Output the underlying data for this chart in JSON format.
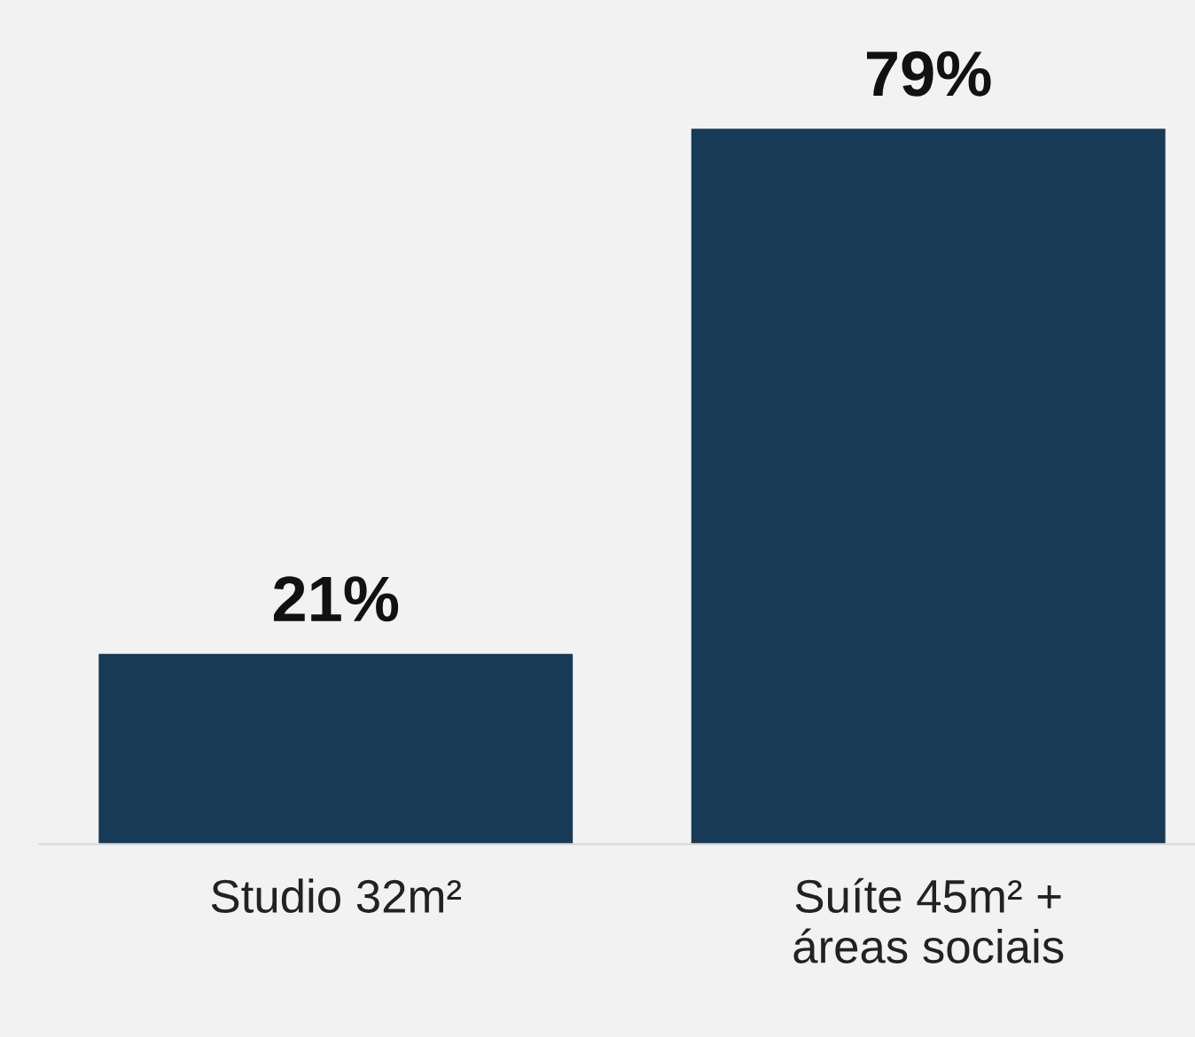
{
  "chart_data": {
    "type": "bar",
    "categories": [
      "Studio 32m²",
      "Suíte 45m² +\náreas sociais"
    ],
    "values": [
      21,
      79
    ],
    "value_labels": [
      "21%",
      "79%"
    ],
    "color": "#173b56",
    "grid": false,
    "legend": false
  }
}
